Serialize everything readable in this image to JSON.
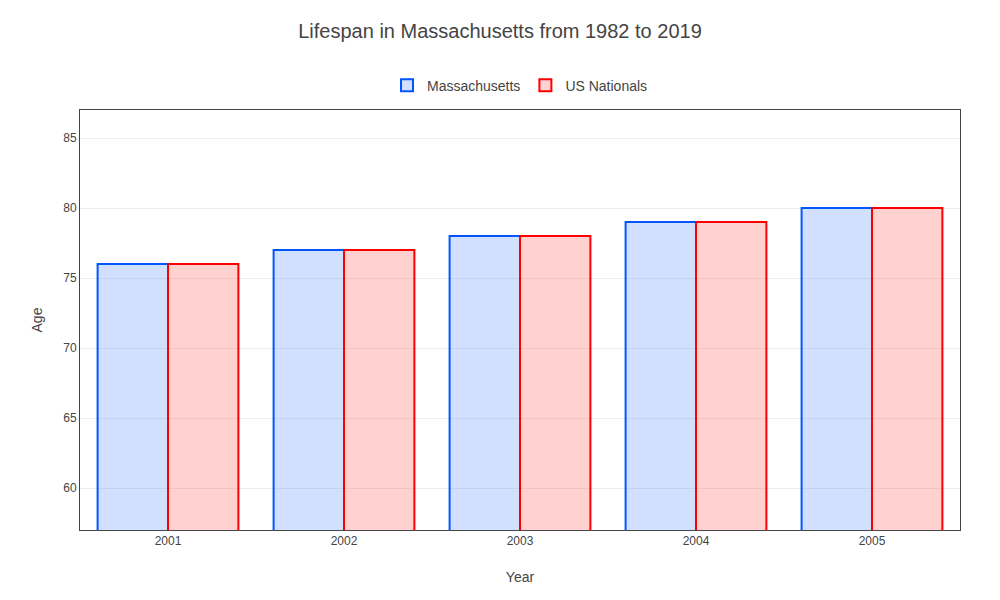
{
  "chart_data": {
    "type": "bar",
    "title": "Lifespan in Massachusetts from 1982 to 2019",
    "xlabel": "Year",
    "ylabel": "Age",
    "categories": [
      "2001",
      "2002",
      "2003",
      "2004",
      "2005"
    ],
    "series": [
      {
        "name": "Massachusetts",
        "color": "#0055ff",
        "values": [
          76,
          77,
          78,
          79,
          80
        ]
      },
      {
        "name": "US Nationals",
        "color": "#ff0000",
        "values": [
          76,
          77,
          78,
          79,
          80
        ]
      }
    ],
    "ylim": [
      57,
      87
    ],
    "yticks": [
      60,
      65,
      70,
      75,
      80,
      85
    ],
    "grid": true,
    "legend": "upper center"
  }
}
